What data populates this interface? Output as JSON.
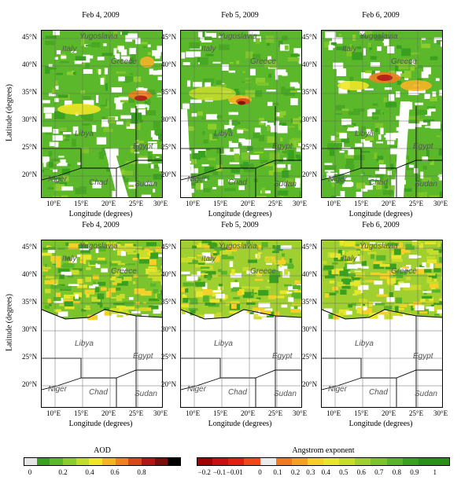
{
  "figure": {
    "row1": [
      "Feb 4, 2009",
      "Feb 5, 2009",
      "Feb 6, 2009"
    ],
    "row2": [
      "Feb 4, 2009",
      "Feb 5, 2009",
      "Feb 6, 2009"
    ],
    "ylabel": "Latitude (degrees)",
    "xlabel": "Longitude (degrees)",
    "lat_ticks": [
      "45°N",
      "40°N",
      "35°N",
      "30°N",
      "25°N",
      "20°N"
    ],
    "lon_ticks": [
      "10°E",
      "15°E",
      "20°E",
      "25°E",
      "30°E"
    ],
    "regions": [
      "Yugoslavia",
      "Italy",
      "Greece",
      "Libya",
      "Egypt",
      "Niger",
      "Chad",
      "Sudan"
    ]
  },
  "colorbars": {
    "aod": {
      "title": "AOD",
      "ticks": [
        "0",
        "0.2",
        "0.4",
        "0.6",
        "0.8"
      ],
      "colors": [
        "#e6e6e6",
        "#3aa020",
        "#5ab82a",
        "#8ccd2e",
        "#c2dc2c",
        "#f0e628",
        "#f5b423",
        "#f08020",
        "#d84818",
        "#b01818",
        "#780e0e",
        "#000000"
      ]
    },
    "angstrom": {
      "title": "Angstrom exponent",
      "ticks": [
        "−0.2",
        "−0.1",
        "−0.01",
        "0",
        "0.1",
        "0.2",
        "0.3",
        "0.4",
        "0.5",
        "0.6",
        "0.7",
        "0.8",
        "0.9",
        "1"
      ],
      "colors": [
        "#a00000",
        "#c81010",
        "#e02010",
        "#f04818",
        "#ececec",
        "#f07a20",
        "#f5a023",
        "#f5d028",
        "#e8e62c",
        "#c8dc2c",
        "#a0d030",
        "#7cc42c",
        "#58b428",
        "#3aa020",
        "#2a9018",
        "#2a9018"
      ]
    }
  }
}
